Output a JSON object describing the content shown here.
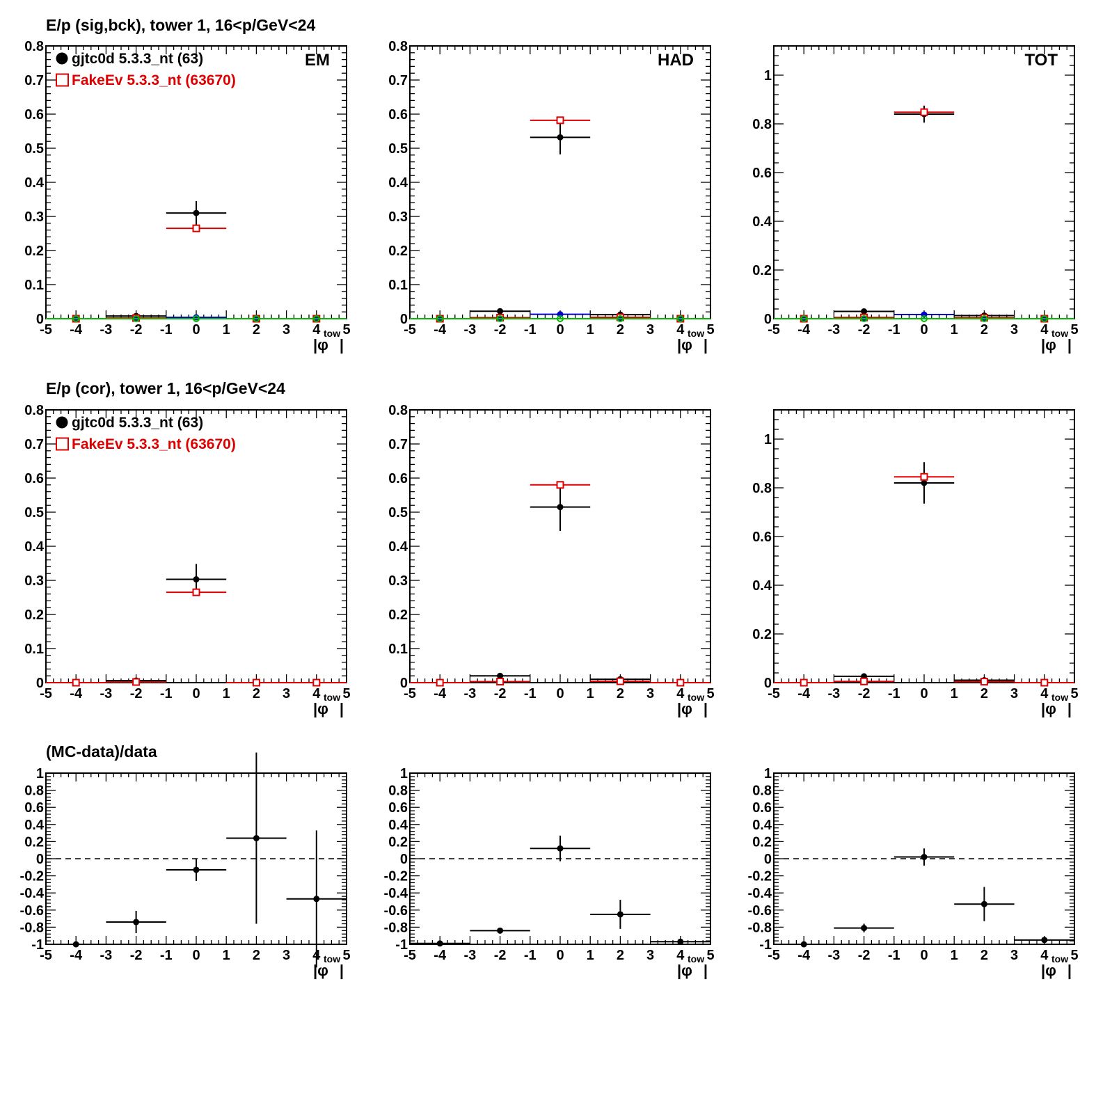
{
  "rows": [
    {
      "title": "E/p (sig,bck), tower 1, 16<p/GeV<24"
    },
    {
      "title": "E/p (cor), tower 1, 16<p/GeV<24"
    },
    {
      "title": "(MC-data)/data"
    }
  ],
  "legend": [
    {
      "label": "gjtc0d 5.3.3_nt (63)",
      "color": "#000000",
      "marker": "filled-circle"
    },
    {
      "label": "FakeEv 5.3.3_nt (63670)",
      "color": "#dd0000",
      "marker": "open-square"
    }
  ],
  "x_axis": {
    "label": "|φ",
    "sub": "tow",
    "close": "|",
    "ticks": [
      "-5",
      "-4",
      "-3",
      "-2",
      "-1",
      "0",
      "1",
      "2",
      "3",
      "4",
      "5"
    ]
  },
  "chart_data": [
    {
      "type": "scatter",
      "panel": "EM sig,bck",
      "corner_label": "EM",
      "xlim": [
        -5,
        5
      ],
      "ylim": [
        0,
        0.8
      ],
      "yticks": [
        "0",
        "0.1",
        "0.2",
        "0.3",
        "0.4",
        "0.5",
        "0.6",
        "0.7",
        "0.8"
      ],
      "series": [
        {
          "name": "gjtc0d 5.3.3_nt (63)",
          "color": "#000000",
          "marker": "filled-circle",
          "points": [
            {
              "x": -4,
              "y": 0
            },
            {
              "x": -2,
              "y": 0.008
            },
            {
              "x": 0,
              "y": 0.31,
              "err": 0.035
            },
            {
              "x": 2,
              "y": 0
            },
            {
              "x": 4,
              "y": 0
            }
          ]
        },
        {
          "name": "FakeEv 5.3.3_nt (63670)",
          "color": "#dd0000",
          "marker": "open-square",
          "points": [
            {
              "x": -4,
              "y": 0
            },
            {
              "x": -2,
              "y": 0.002
            },
            {
              "x": 0,
              "y": 0.265
            },
            {
              "x": 2,
              "y": 0
            },
            {
              "x": 4,
              "y": 0
            }
          ]
        },
        {
          "color": "#0000cc",
          "marker": "filled-circle",
          "points": [
            {
              "x": -4,
              "y": 0
            },
            {
              "x": -2,
              "y": 0
            },
            {
              "x": 0,
              "y": 0.004
            },
            {
              "x": 2,
              "y": 0
            },
            {
              "x": 4,
              "y": 0
            }
          ]
        },
        {
          "color": "#00bb00",
          "marker": "open-circle",
          "points": [
            {
              "x": -4,
              "y": 0
            },
            {
              "x": -2,
              "y": 0
            },
            {
              "x": 0,
              "y": 0
            },
            {
              "x": 2,
              "y": 0
            },
            {
              "x": 4,
              "y": 0
            }
          ]
        }
      ]
    },
    {
      "type": "scatter",
      "panel": "HAD sig,bck",
      "corner_label": "HAD",
      "xlim": [
        -5,
        5
      ],
      "ylim": [
        0,
        0.8
      ],
      "yticks": [
        "0",
        "0.1",
        "0.2",
        "0.3",
        "0.4",
        "0.5",
        "0.6",
        "0.7",
        "0.8"
      ],
      "series": [
        {
          "name": "gjtc0d 5.3.3_nt (63)",
          "color": "#000000",
          "marker": "filled-circle",
          "points": [
            {
              "x": -4,
              "y": 0
            },
            {
              "x": -2,
              "y": 0.022
            },
            {
              "x": 0,
              "y": 0.532,
              "err": 0.05
            },
            {
              "x": 2,
              "y": 0.012
            },
            {
              "x": 4,
              "y": 0
            }
          ]
        },
        {
          "name": "FakeEv 5.3.3_nt (63670)",
          "color": "#dd0000",
          "marker": "open-square",
          "points": [
            {
              "x": -4,
              "y": 0
            },
            {
              "x": -2,
              "y": 0.003
            },
            {
              "x": 0,
              "y": 0.582
            },
            {
              "x": 2,
              "y": 0.004
            },
            {
              "x": 4,
              "y": 0
            }
          ]
        },
        {
          "color": "#0000cc",
          "marker": "filled-circle",
          "points": [
            {
              "x": -4,
              "y": 0
            },
            {
              "x": -2,
              "y": 0
            },
            {
              "x": 0,
              "y": 0.013
            },
            {
              "x": 2,
              "y": 0
            },
            {
              "x": 4,
              "y": 0
            }
          ]
        },
        {
          "color": "#00bb00",
          "marker": "open-circle",
          "points": [
            {
              "x": -4,
              "y": 0
            },
            {
              "x": -2,
              "y": 0
            },
            {
              "x": 0,
              "y": 0
            },
            {
              "x": 2,
              "y": 0
            },
            {
              "x": 4,
              "y": 0
            }
          ]
        }
      ]
    },
    {
      "type": "scatter",
      "panel": "TOT sig,bck",
      "corner_label": "TOT",
      "xlim": [
        -5,
        5
      ],
      "ylim": [
        0,
        1.12
      ],
      "yticks": [
        "0",
        "0.2",
        "0.4",
        "0.6",
        "0.8",
        "1"
      ],
      "series": [
        {
          "name": "gjtc0d 5.3.3_nt (63)",
          "color": "#000000",
          "marker": "filled-circle",
          "points": [
            {
              "x": -4,
              "y": 0
            },
            {
              "x": -2,
              "y": 0.03
            },
            {
              "x": 0,
              "y": 0.84,
              "err": 0.035
            },
            {
              "x": 2,
              "y": 0.013
            },
            {
              "x": 4,
              "y": 0
            }
          ]
        },
        {
          "name": "FakeEv 5.3.3_nt (63670)",
          "color": "#dd0000",
          "marker": "open-square",
          "points": [
            {
              "x": -4,
              "y": 0
            },
            {
              "x": -2,
              "y": 0.005
            },
            {
              "x": 0,
              "y": 0.848
            },
            {
              "x": 2,
              "y": 0.004
            },
            {
              "x": 4,
              "y": 0
            }
          ]
        },
        {
          "color": "#0000cc",
          "marker": "filled-circle",
          "points": [
            {
              "x": -4,
              "y": 0
            },
            {
              "x": -2,
              "y": 0
            },
            {
              "x": 0,
              "y": 0.017
            },
            {
              "x": 2,
              "y": 0
            },
            {
              "x": 4,
              "y": 0
            }
          ]
        },
        {
          "color": "#00bb00",
          "marker": "open-circle",
          "points": [
            {
              "x": -4,
              "y": 0
            },
            {
              "x": -2,
              "y": 0
            },
            {
              "x": 0,
              "y": 0
            },
            {
              "x": 2,
              "y": 0
            },
            {
              "x": 4,
              "y": 0
            }
          ]
        }
      ]
    },
    {
      "type": "scatter",
      "panel": "EM cor",
      "corner_label": "",
      "xlim": [
        -5,
        5
      ],
      "ylim": [
        0,
        0.8
      ],
      "yticks": [
        "0",
        "0.1",
        "0.2",
        "0.3",
        "0.4",
        "0.5",
        "0.6",
        "0.7",
        "0.8"
      ],
      "series": [
        {
          "name": "gjtc0d 5.3.3_nt (63)",
          "color": "#000000",
          "marker": "filled-circle",
          "points": [
            {
              "x": -4,
              "y": 0
            },
            {
              "x": -2,
              "y": 0.006
            },
            {
              "x": 0,
              "y": 0.303,
              "err": 0.045
            },
            {
              "x": 2,
              "y": 0
            },
            {
              "x": 4,
              "y": 0
            }
          ]
        },
        {
          "name": "FakeEv 5.3.3_nt (63670)",
          "color": "#dd0000",
          "marker": "open-square",
          "points": [
            {
              "x": -4,
              "y": 0
            },
            {
              "x": -2,
              "y": 0.002
            },
            {
              "x": 0,
              "y": 0.265
            },
            {
              "x": 2,
              "y": 0
            },
            {
              "x": 4,
              "y": 0
            }
          ]
        }
      ]
    },
    {
      "type": "scatter",
      "panel": "HAD cor",
      "corner_label": "",
      "xlim": [
        -5,
        5
      ],
      "ylim": [
        0,
        0.8
      ],
      "yticks": [
        "0",
        "0.1",
        "0.2",
        "0.3",
        "0.4",
        "0.5",
        "0.6",
        "0.7",
        "0.8"
      ],
      "series": [
        {
          "name": "gjtc0d 5.3.3_nt (63)",
          "color": "#000000",
          "marker": "filled-circle",
          "points": [
            {
              "x": -4,
              "y": 0
            },
            {
              "x": -2,
              "y": 0.02
            },
            {
              "x": 0,
              "y": 0.515,
              "err": 0.07
            },
            {
              "x": 2,
              "y": 0.01
            },
            {
              "x": 4,
              "y": 0
            }
          ]
        },
        {
          "name": "FakeEv 5.3.3_nt (63670)",
          "color": "#dd0000",
          "marker": "open-square",
          "points": [
            {
              "x": -4,
              "y": 0
            },
            {
              "x": -2,
              "y": 0.003
            },
            {
              "x": 0,
              "y": 0.58
            },
            {
              "x": 2,
              "y": 0.004
            },
            {
              "x": 4,
              "y": 0
            }
          ]
        }
      ]
    },
    {
      "type": "scatter",
      "panel": "TOT cor",
      "corner_label": "",
      "xlim": [
        -5,
        5
      ],
      "ylim": [
        0,
        1.12
      ],
      "yticks": [
        "0",
        "0.2",
        "0.4",
        "0.6",
        "0.8",
        "1"
      ],
      "series": [
        {
          "name": "gjtc0d 5.3.3_nt (63)",
          "color": "#000000",
          "marker": "filled-circle",
          "points": [
            {
              "x": -4,
              "y": 0
            },
            {
              "x": -2,
              "y": 0.026
            },
            {
              "x": 0,
              "y": 0.82,
              "err": 0.085
            },
            {
              "x": 2,
              "y": 0.01
            },
            {
              "x": 4,
              "y": 0
            }
          ]
        },
        {
          "name": "FakeEv 5.3.3_nt (63670)",
          "color": "#dd0000",
          "marker": "open-square",
          "points": [
            {
              "x": -4,
              "y": 0
            },
            {
              "x": -2,
              "y": 0.005
            },
            {
              "x": 0,
              "y": 0.845
            },
            {
              "x": 2,
              "y": 0.004
            },
            {
              "x": 4,
              "y": 0
            }
          ]
        }
      ]
    },
    {
      "type": "scatter",
      "panel": "EM ratio",
      "corner_label": "",
      "xlim": [
        -5,
        5
      ],
      "ylim": [
        -1,
        1
      ],
      "reference_y": 0,
      "yticks": [
        "-1",
        "-0.8",
        "-0.6",
        "-0.4",
        "-0.2",
        "0",
        "0.2",
        "0.4",
        "0.6",
        "0.8",
        "1"
      ],
      "series": [
        {
          "color": "#000000",
          "marker": "filled-circle",
          "points": [
            {
              "x": -4,
              "y": -1
            },
            {
              "x": -2,
              "y": -0.74,
              "err": 0.13
            },
            {
              "x": 0,
              "y": -0.13,
              "err": 0.13
            },
            {
              "x": 2,
              "y": 0.24,
              "err": 1.0
            },
            {
              "x": 4,
              "y": -0.47,
              "err": 0.8
            }
          ]
        }
      ]
    },
    {
      "type": "scatter",
      "panel": "HAD ratio",
      "corner_label": "",
      "xlim": [
        -5,
        5
      ],
      "ylim": [
        -1,
        1
      ],
      "reference_y": 0,
      "yticks": [
        "-1",
        "-0.8",
        "-0.6",
        "-0.4",
        "-0.2",
        "0",
        "0.2",
        "0.4",
        "0.6",
        "0.8",
        "1"
      ],
      "series": [
        {
          "color": "#000000",
          "marker": "filled-circle",
          "points": [
            {
              "x": -4,
              "y": -0.99
            },
            {
              "x": -2,
              "y": -0.84,
              "err": 0.03
            },
            {
              "x": 0,
              "y": 0.12,
              "err": 0.15
            },
            {
              "x": 2,
              "y": -0.65,
              "err": 0.17
            },
            {
              "x": 4,
              "y": -0.97
            }
          ]
        }
      ]
    },
    {
      "type": "scatter",
      "panel": "TOT ratio",
      "corner_label": "",
      "xlim": [
        -5,
        5
      ],
      "ylim": [
        -1,
        1
      ],
      "reference_y": 0,
      "yticks": [
        "-1",
        "-0.8",
        "-0.6",
        "-0.4",
        "-0.2",
        "0",
        "0.2",
        "0.4",
        "0.6",
        "0.8",
        "1"
      ],
      "series": [
        {
          "color": "#000000",
          "marker": "filled-circle",
          "points": [
            {
              "x": -4,
              "y": -1
            },
            {
              "x": -2,
              "y": -0.81,
              "err": 0.05
            },
            {
              "x": 0,
              "y": 0.02,
              "err": 0.1
            },
            {
              "x": 2,
              "y": -0.53,
              "err": 0.2
            },
            {
              "x": 4,
              "y": -0.95
            }
          ]
        }
      ]
    }
  ]
}
